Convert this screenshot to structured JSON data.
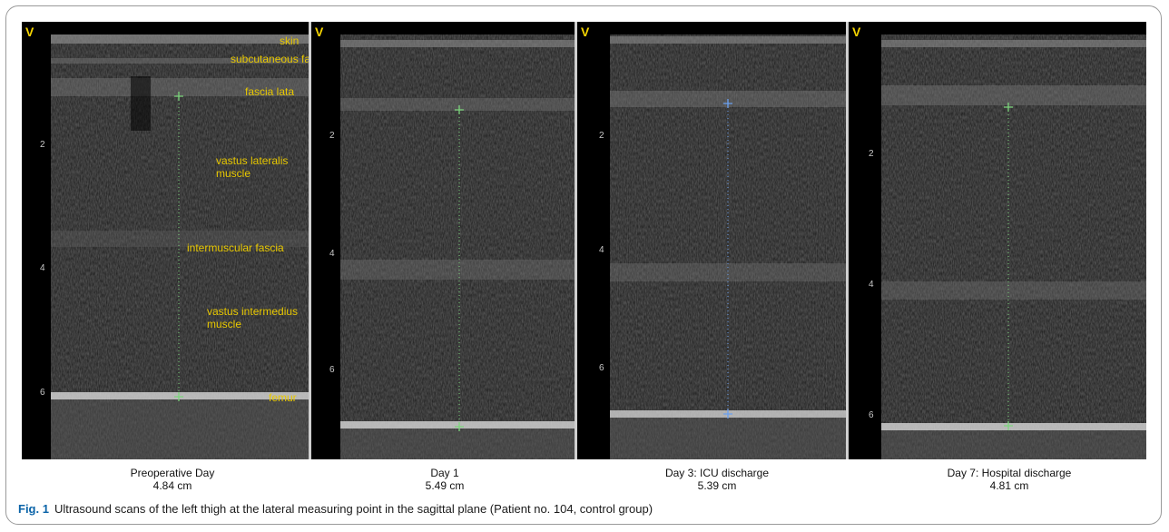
{
  "panels": [
    {
      "v_label": "V",
      "caption_title": "Preoperative Day",
      "caption_value": "4.84 cm",
      "depth_ticks": [
        "2",
        "4",
        "6"
      ],
      "caliper_color": "#7cd67c"
    },
    {
      "v_label": "V",
      "caption_title": "Day 1",
      "caption_value": "5.49 cm",
      "depth_ticks": [
        "2",
        "4",
        "6"
      ],
      "caliper_color": "#7cd67c"
    },
    {
      "v_label": "V",
      "caption_title": "Day 3: ICU discharge",
      "caption_value": "5.39 cm",
      "depth_ticks": [
        "2",
        "4",
        "6"
      ],
      "caliper_color": "#6aa0f0"
    },
    {
      "v_label": "V",
      "caption_title": "Day 7: Hospital discharge",
      "caption_value": "4.81 cm",
      "depth_ticks": [
        "2",
        "4",
        "6"
      ],
      "caliper_color": "#7cd67c"
    }
  ],
  "annotations": {
    "skin": "skin",
    "subcutaneous_fat": "subcutaneous fat",
    "fascia_lata": "fascia lata",
    "vastus_lateralis_1": "vastus lateralis",
    "vastus_lateralis_2": "muscle",
    "intermuscular_fascia": "intermuscular fascia",
    "vastus_intermedius_1": "vastus intermedius",
    "vastus_intermedius_2": "muscle",
    "femur": "femur"
  },
  "figure_caption": {
    "label": "Fig. 1",
    "text": "Ultrasound scans of the left thigh at the lateral measuring point in the sagittal plane (Patient no. 104, control group)"
  },
  "colors": {
    "annotation": "#e8c800",
    "figure_label": "#0a63a8"
  }
}
